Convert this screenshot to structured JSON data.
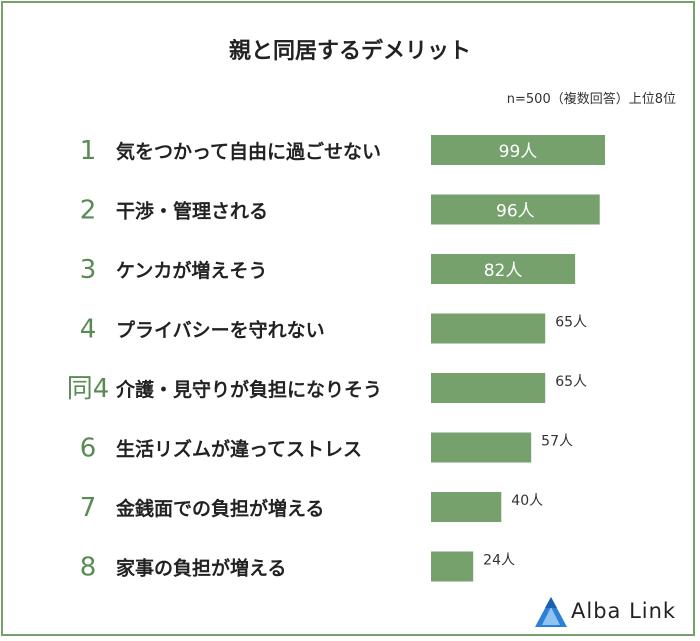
{
  "chart_data": {
    "type": "bar",
    "orientation": "horizontal",
    "title": "親と同居するデメリット",
    "note": "n=500（複数回答）上位8位",
    "ranks": [
      "1",
      "2",
      "3",
      "4",
      "同4",
      "6",
      "7",
      "8"
    ],
    "categories": [
      "気をつかって自由に過ごせない",
      "干渉・管理される",
      "ケンカが増えそう",
      "プライバシーを守れない",
      "介護・見守りが負担になりそう",
      "生活リズムが違ってストレス",
      "金銭面での負担が増える",
      "家事の負担が増える"
    ],
    "values": [
      99,
      96,
      82,
      65,
      65,
      57,
      40,
      24
    ],
    "value_labels": [
      "99人",
      "96人",
      "82人",
      "65人",
      "65人",
      "57人",
      "40人",
      "24人"
    ],
    "colors": {
      "bar": "#76a06c",
      "rank": "#5a8a55",
      "frame": "#76a06c"
    }
  },
  "logo": {
    "text": "Alba Link"
  }
}
